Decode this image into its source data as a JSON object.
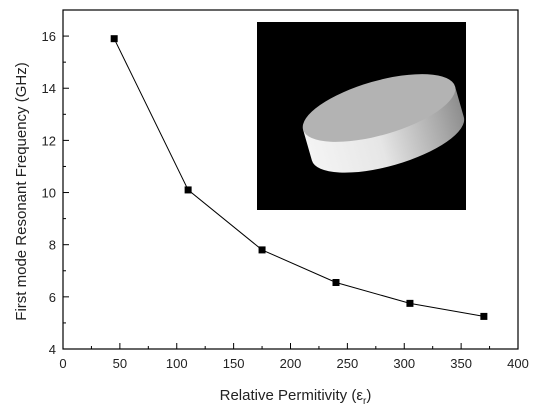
{
  "chart_data": {
    "type": "line",
    "title": "",
    "xlabel": "Relative Permitivity",
    "xlabel_symbol": "ε",
    "xlabel_subscript": "r",
    "ylabel": "First mode Resonant Frequency (GHz)",
    "xlim": [
      0,
      400
    ],
    "ylim": [
      4,
      17
    ],
    "xticks": [
      0,
      50,
      100,
      150,
      200,
      250,
      300,
      350,
      400
    ],
    "yticks": [
      4,
      6,
      8,
      10,
      12,
      14,
      16
    ],
    "grid": false,
    "legend": "none",
    "marker": "square",
    "series": [
      {
        "x": [
          45,
          110,
          175,
          240,
          305,
          370
        ],
        "values": [
          15.9,
          10.1,
          7.8,
          6.55,
          5.75,
          5.25
        ]
      }
    ],
    "inset": {
      "description_icon": "cylinder-resonator-icon",
      "background": "#000000"
    },
    "colors": {
      "line": "#000000",
      "marker": "#000000",
      "axis": "#000000"
    }
  }
}
